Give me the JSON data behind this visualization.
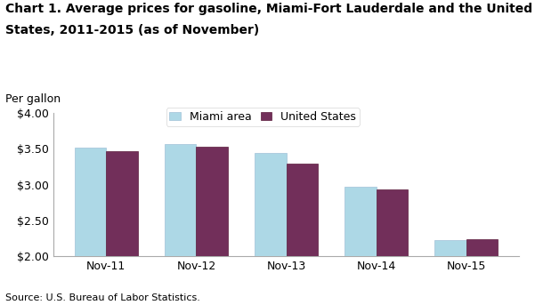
{
  "title_line1": "Chart 1. Average prices for gasoline, Miami-Fort Lauderdale and the United",
  "title_line2": "States, 2011-2015 (as of November)",
  "ylabel": "Per gallon",
  "source": "Source: U.S. Bureau of Labor Statistics.",
  "categories": [
    "Nov-11",
    "Nov-12",
    "Nov-13",
    "Nov-14",
    "Nov-15"
  ],
  "miami_values": [
    3.51,
    3.57,
    3.44,
    2.97,
    2.22
  ],
  "us_values": [
    3.47,
    3.53,
    3.29,
    2.93,
    2.24
  ],
  "miami_color": "#add8e6",
  "us_color": "#722f5a",
  "ylim": [
    2.0,
    4.0
  ],
  "yticks": [
    2.0,
    2.5,
    3.0,
    3.5,
    4.0
  ],
  "legend_miami": "Miami area",
  "legend_us": "United States",
  "bar_width": 0.35,
  "title_fontsize": 10,
  "axis_label_fontsize": 9,
  "tick_fontsize": 9,
  "legend_fontsize": 9,
  "source_fontsize": 8,
  "bar_edge_color": "#7f9fbf",
  "us_edge_color": "#5a1f3f"
}
